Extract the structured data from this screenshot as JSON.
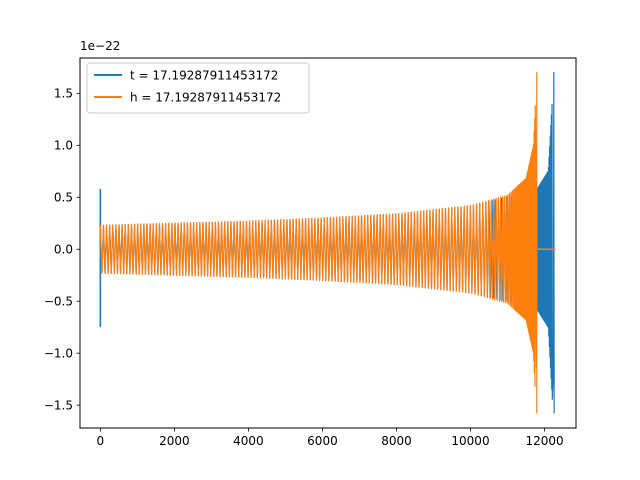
{
  "chart_data": {
    "type": "line",
    "title": "",
    "xlabel": "",
    "ylabel": "",
    "y_offset_label": "1e−22",
    "xlim": [
      -550,
      12850
    ],
    "ylim": [
      -1.72,
      1.84
    ],
    "y_scale_factor": 1e-22,
    "xticks": [
      0,
      2000,
      4000,
      6000,
      8000,
      10000,
      12000
    ],
    "xtick_labels": [
      "0",
      "2000",
      "4000",
      "6000",
      "8000",
      "10000",
      "12000"
    ],
    "yticks": [
      -1.5,
      -1.0,
      -0.5,
      0.0,
      0.5,
      1.0,
      1.5
    ],
    "ytick_labels": [
      "−1.5",
      "−1.0",
      "−0.5",
      "0.0",
      "0.5",
      "1.0",
      "1.5"
    ],
    "grid": false,
    "legend_position": "upper-left",
    "series": [
      {
        "name": "t = 17.19287911453172",
        "color": "#1f77b4",
        "description_points": {
          "initial_spike": {
            "x": 0,
            "ymin": -0.75,
            "ymax": 0.58
          },
          "envelope": [
            [
              0,
              0.23
            ],
            [
              2000,
              0.25
            ],
            [
              4000,
              0.27
            ],
            [
              6000,
              0.3
            ],
            [
              8000,
              0.34
            ],
            [
              10000,
              0.42
            ],
            [
              11000,
              0.5
            ],
            [
              11800,
              0.58
            ],
            [
              12100,
              0.75
            ],
            [
              12250,
              1.7
            ]
          ],
          "negative_peak": {
            "x": 12260,
            "y": -1.58
          },
          "end_x": 12270
        }
      },
      {
        "name": "h = 17.19287911453172",
        "color": "#ff7f0e",
        "description_points": {
          "envelope": [
            [
              0,
              0.23
            ],
            [
              2000,
              0.25
            ],
            [
              4000,
              0.27
            ],
            [
              6000,
              0.3
            ],
            [
              8000,
              0.34
            ],
            [
              10000,
              0.42
            ],
            [
              11000,
              0.52
            ],
            [
              11500,
              0.68
            ],
            [
              11700,
              1.0
            ],
            [
              11790,
              1.7
            ]
          ],
          "negative_peak": {
            "x": 11790,
            "y": -1.58
          },
          "flat_tail": {
            "x_start": 11800,
            "x_end": 12300,
            "y": 0.0
          }
        }
      }
    ]
  }
}
